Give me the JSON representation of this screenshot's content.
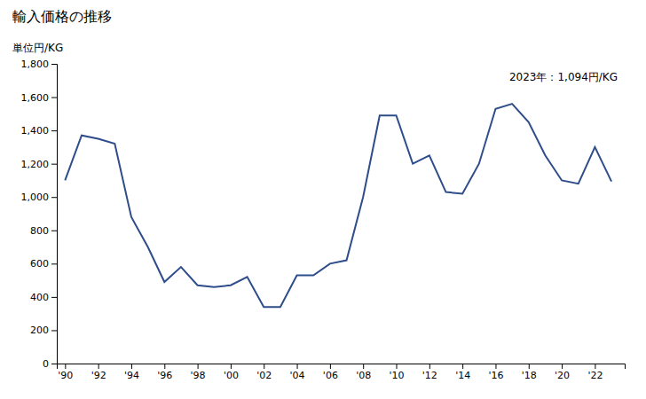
{
  "chart_data": {
    "type": "line",
    "title": "輸入価格の推移",
    "ylabel": "単位円/KG",
    "annotation": "2023年：1,094円/KG",
    "x": [
      1990,
      1991,
      1992,
      1993,
      1994,
      1995,
      1996,
      1997,
      1998,
      1999,
      2000,
      2001,
      2002,
      2003,
      2004,
      2005,
      2006,
      2007,
      2008,
      2009,
      2010,
      2011,
      2012,
      2013,
      2014,
      2015,
      2016,
      2017,
      2018,
      2019,
      2020,
      2021,
      2022,
      2023
    ],
    "values": [
      1100,
      1370,
      1350,
      1320,
      880,
      700,
      490,
      580,
      470,
      460,
      470,
      520,
      340,
      340,
      530,
      530,
      600,
      620,
      1000,
      1490,
      1490,
      1200,
      1250,
      1030,
      1020,
      1200,
      1530,
      1560,
      1450,
      1250,
      1100,
      1080,
      1300,
      1094
    ],
    "color": "#2e4d8a",
    "xlim": [
      1989.5,
      2023.8
    ],
    "xticks": [
      {
        "value": 1990,
        "label": "'90"
      },
      {
        "value": 1992,
        "label": "'92"
      },
      {
        "value": 1994,
        "label": "'94"
      },
      {
        "value": 1996,
        "label": "'96"
      },
      {
        "value": 1998,
        "label": "'98"
      },
      {
        "value": 2000,
        "label": "'00"
      },
      {
        "value": 2002,
        "label": "'02"
      },
      {
        "value": 2004,
        "label": "'04"
      },
      {
        "value": 2006,
        "label": "'06"
      },
      {
        "value": 2008,
        "label": "'08"
      },
      {
        "value": 2010,
        "label": "'10"
      },
      {
        "value": 2012,
        "label": "'12"
      },
      {
        "value": 2014,
        "label": "'14"
      },
      {
        "value": 2016,
        "label": "'16"
      },
      {
        "value": 2018,
        "label": "'18"
      },
      {
        "value": 2020,
        "label": "'20"
      },
      {
        "value": 2022,
        "label": "'22"
      }
    ],
    "ylim": [
      0,
      1800
    ],
    "yticks": [
      0,
      200,
      400,
      600,
      800,
      {
        "value": 1000,
        "label": "1,000"
      },
      {
        "value": 1200,
        "label": "1,200"
      },
      {
        "value": 1400,
        "label": "1,400"
      },
      {
        "value": 1600,
        "label": "1,600"
      },
      {
        "value": 1800,
        "label": "1,800"
      }
    ],
    "grid": false
  }
}
